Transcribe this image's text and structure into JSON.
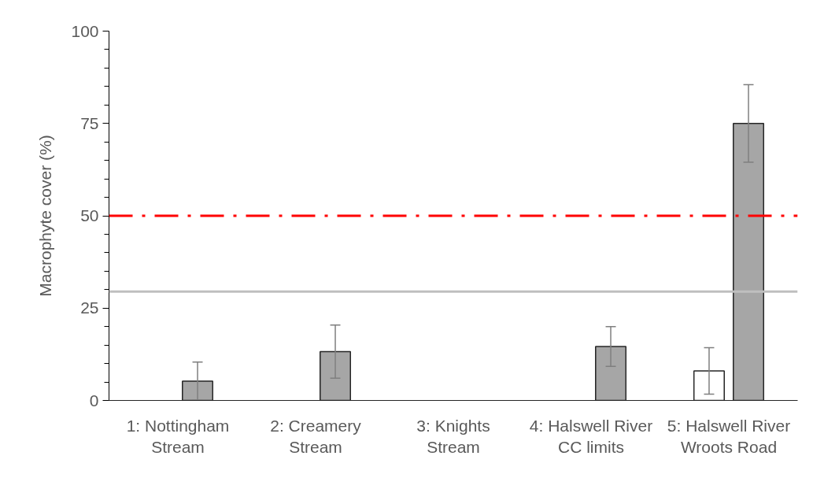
{
  "chart_data": {
    "type": "bar",
    "ylabel": "Macrophyte cover (%)",
    "categories": [
      "1: Nottingham\nStream",
      "2: Creamery\nStream",
      "3: Knights\nStream",
      "4: Halswell River\nCC limits",
      "5: Halswell River\nWroots Road"
    ],
    "series": [
      {
        "color": "#ffffff",
        "values": [
          null,
          null,
          null,
          null,
          8.0
        ],
        "errors": [
          null,
          null,
          null,
          null,
          6.3
        ]
      },
      {
        "color": "#a6a6a6",
        "values": [
          5.2,
          13.2,
          null,
          14.6,
          75
        ],
        "errors": [
          5.2,
          7.2,
          null,
          5.4,
          10.5
        ]
      }
    ],
    "ylim": [
      0,
      100
    ],
    "yticks": [
      0,
      {
        "value": 5,
        "label": null
      },
      {
        "value": 10,
        "label": null
      },
      {
        "value": 15,
        "label": null
      },
      {
        "value": 20,
        "label": null
      },
      25,
      {
        "value": 30,
        "label": null
      },
      {
        "value": 35,
        "label": null
      },
      {
        "value": 40,
        "label": null
      },
      {
        "value": 45,
        "label": null
      },
      50,
      {
        "value": 55,
        "label": null
      },
      {
        "value": 60,
        "label": null
      },
      {
        "value": 65,
        "label": null
      },
      {
        "value": 70,
        "label": null
      },
      75,
      {
        "value": 80,
        "label": null
      },
      {
        "value": 85,
        "label": null
      },
      {
        "value": 90,
        "label": null
      },
      {
        "value": 95,
        "label": null
      },
      100
    ],
    "ref_lines": [
      {
        "axis": "y",
        "value": 50,
        "color": "#ff0000",
        "line_style": "dashdot"
      },
      {
        "axis": "y",
        "value": 29.5,
        "color": "#bfbfbf",
        "line_style": "solid"
      }
    ]
  }
}
